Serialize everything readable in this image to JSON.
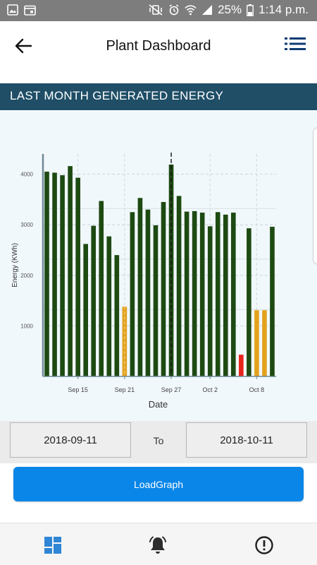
{
  "status_bar": {
    "battery": "25%",
    "time": "1:14 p.m."
  },
  "header": {
    "title": "Plant Dashboard"
  },
  "section": {
    "title": "LAST MONTH GENERATED ENERGY"
  },
  "chart_data": {
    "type": "bar",
    "xlabel": "Date",
    "ylabel": "Energy (KWh)",
    "ylim": [
      0,
      4400
    ],
    "yticks": [
      1000,
      2000,
      3000,
      4000
    ],
    "xticks": [
      "Sep 15",
      "Sep 21",
      "Sep 27",
      "Oct 2",
      "Oct 8"
    ],
    "grid": true,
    "colors": {
      "normal": "#1d4a12",
      "warning": "#e3a21c",
      "alert": "#e8231c"
    },
    "categories": [
      "2018-09-11",
      "2018-09-12",
      "2018-09-13",
      "2018-09-14",
      "2018-09-15",
      "2018-09-16",
      "2018-09-17",
      "2018-09-18",
      "2018-09-19",
      "2018-09-20",
      "2018-09-21",
      "2018-09-22",
      "2018-09-23",
      "2018-09-24",
      "2018-09-25",
      "2018-09-26",
      "2018-09-27",
      "2018-09-28",
      "2018-09-29",
      "2018-09-30",
      "2018-10-01",
      "2018-10-02",
      "2018-10-03",
      "2018-10-04",
      "2018-10-05",
      "2018-10-06",
      "2018-10-07",
      "2018-10-08",
      "2018-10-09",
      "2018-10-10"
    ],
    "values": [
      4050,
      4030,
      3980,
      4160,
      3930,
      2620,
      2980,
      3470,
      2770,
      2400,
      1380,
      3250,
      3530,
      3300,
      2990,
      3450,
      4190,
      3570,
      3260,
      3270,
      3240,
      2970,
      3250,
      3200,
      3240,
      430,
      2930,
      1310,
      1310,
      2960
    ],
    "status": [
      "normal",
      "normal",
      "normal",
      "normal",
      "normal",
      "normal",
      "normal",
      "normal",
      "normal",
      "normal",
      "warning",
      "normal",
      "normal",
      "normal",
      "normal",
      "normal",
      "normal",
      "normal",
      "normal",
      "normal",
      "normal",
      "normal",
      "normal",
      "normal",
      "normal",
      "alert",
      "normal",
      "warning",
      "warning",
      "normal"
    ],
    "vlines": [
      "2018-09-27"
    ]
  },
  "range": {
    "from": "2018-09-11",
    "to_label": "To",
    "to": "2018-10-11"
  },
  "actions": {
    "load_label": "LoadGraph"
  },
  "bottom_nav": {
    "items": [
      {
        "icon": "dashboard-icon"
      },
      {
        "icon": "alarm-bell-icon"
      },
      {
        "icon": "alert-info-icon"
      }
    ]
  }
}
